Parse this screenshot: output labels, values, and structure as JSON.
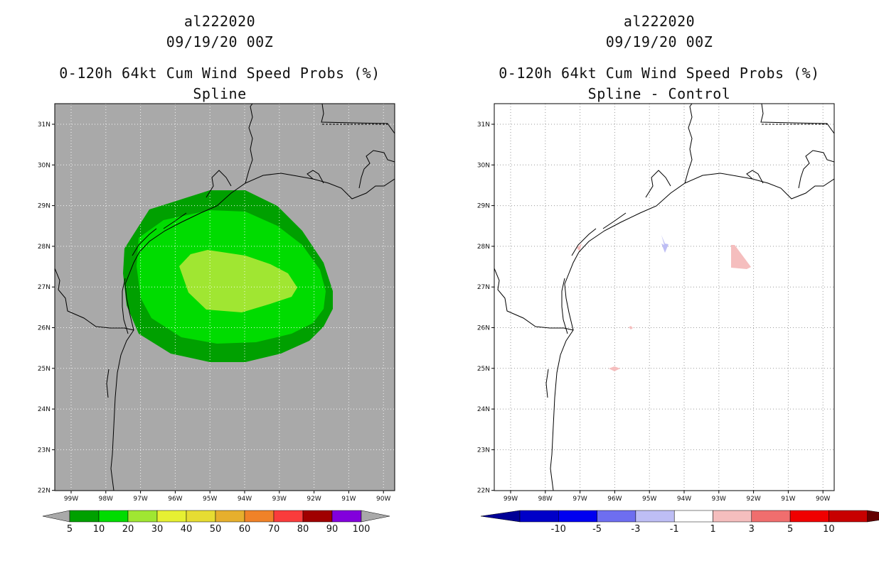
{
  "left": {
    "title": {
      "storm_id": "al222020",
      "date": "09/19/20 00Z",
      "product": "0-120h 64kt Cum Wind Speed Probs (%)",
      "variant": "Spline"
    },
    "colorbar": {
      "labels": [
        "5",
        "10",
        "20",
        "30",
        "40",
        "50",
        "60",
        "70",
        "80",
        "90",
        "100"
      ],
      "colors": [
        "#00a000",
        "#00dc00",
        "#a0e632",
        "#e6f032",
        "#e6dc32",
        "#e6af2d",
        "#f08228",
        "#fa3c3c",
        "#a00000",
        "#8200dc"
      ],
      "end_color": "#a9a9a9"
    },
    "background": "#a9a9a9"
  },
  "right": {
    "title": {
      "storm_id": "al222020",
      "date": "09/19/20 00Z",
      "product": "0-120h 64kt Cum Wind Speed Probs (%)",
      "variant": "Spline - Control"
    },
    "colorbar": {
      "labels": [
        "-10",
        "-5",
        "-3",
        "-1",
        "1",
        "3",
        "5",
        "10"
      ],
      "colors": [
        "#0000c8",
        "#0000f0",
        "#6e6ef0",
        "#bebef5",
        "#ffffff",
        "#f5bebe",
        "#f06e6e",
        "#f00000",
        "#c80000"
      ],
      "end_colors": [
        "#000096",
        "#640000"
      ]
    },
    "background": "#ffffff"
  },
  "axes": {
    "lat_labels": [
      "31N",
      "30N",
      "29N",
      "28N",
      "27N",
      "26N",
      "25N",
      "24N",
      "23N",
      "22N"
    ],
    "lon_labels": [
      "99W",
      "98W",
      "97W",
      "96W",
      "95W",
      "94W",
      "93W",
      "92W",
      "91W",
      "90W"
    ]
  },
  "legend_icons": [
    "triangle-end-left-icon",
    "triangle-end-right-icon"
  ]
}
